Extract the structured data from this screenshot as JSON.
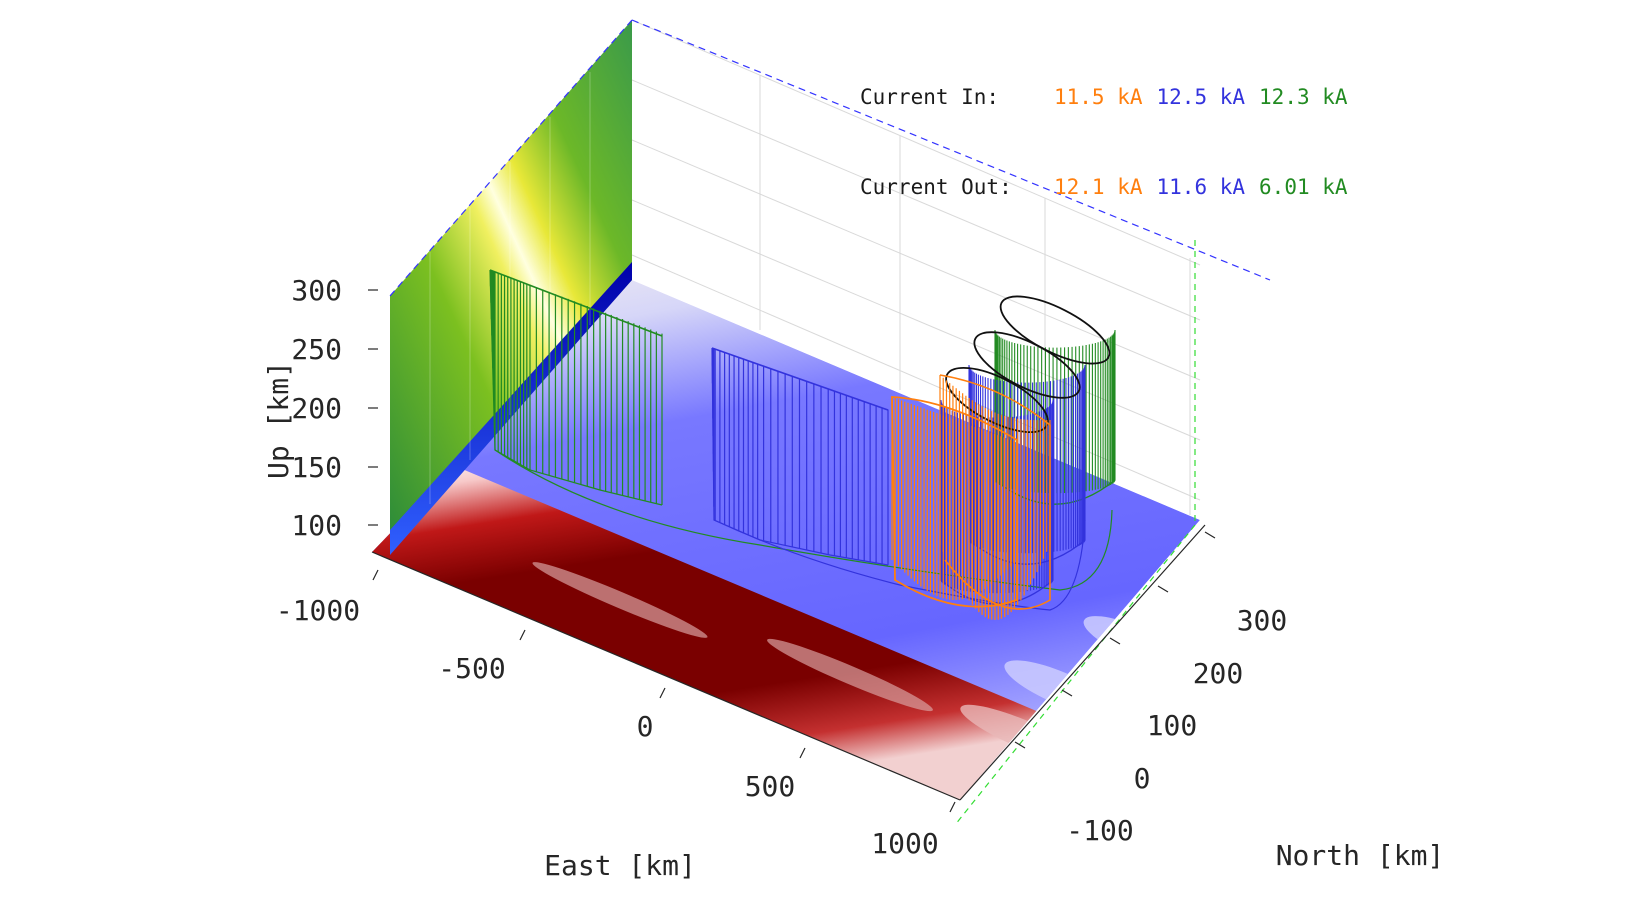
{
  "legend": {
    "current_in_label": "Current In:",
    "current_out_label": "Current Out:",
    "current_in": [
      {
        "value": "11.5 kA",
        "color": "#ff7f0e"
      },
      {
        "value": "12.5 kA",
        "color": "#3333dd"
      },
      {
        "value": "12.3 kA",
        "color": "#228b22"
      }
    ],
    "current_out": [
      {
        "value": "12.1 kA",
        "color": "#ff7f0e"
      },
      {
        "value": "11.6 kA",
        "color": "#3333dd"
      },
      {
        "value": "6.01 kA",
        "color": "#228b22"
      }
    ]
  },
  "chart_data": {
    "type": "3d-surface-current-loops",
    "xlabel": "East [km]",
    "ylabel": "North [km]",
    "zlabel": "Up [km]",
    "x_ticks": [
      "-1000",
      "-500",
      "0",
      "500",
      "1000"
    ],
    "y_ticks": [
      "-100",
      "0",
      "100",
      "200",
      "300"
    ],
    "z_ticks": [
      "100",
      "150",
      "200",
      "250",
      "300"
    ],
    "xlim": [
      -1000,
      1000
    ],
    "ylim": [
      -150,
      350
    ],
    "zlim": [
      80,
      330
    ],
    "grid": true,
    "colors": {
      "orange": "#ff7f0e",
      "blue": "#3333dd",
      "green": "#228b22",
      "floor_red": "#7a0000",
      "floor_blue": "#6a6aff"
    },
    "loops": [
      {
        "series": "green",
        "east_start": -900,
        "east_end": 800,
        "north": 330,
        "top_km": 300
      },
      {
        "series": "blue",
        "east_start": -300,
        "east_end": 750,
        "north": 250,
        "top_km": 270
      },
      {
        "series": "orange",
        "east_start": 300,
        "east_end": 650,
        "north": 180,
        "top_km": 240
      }
    ]
  }
}
